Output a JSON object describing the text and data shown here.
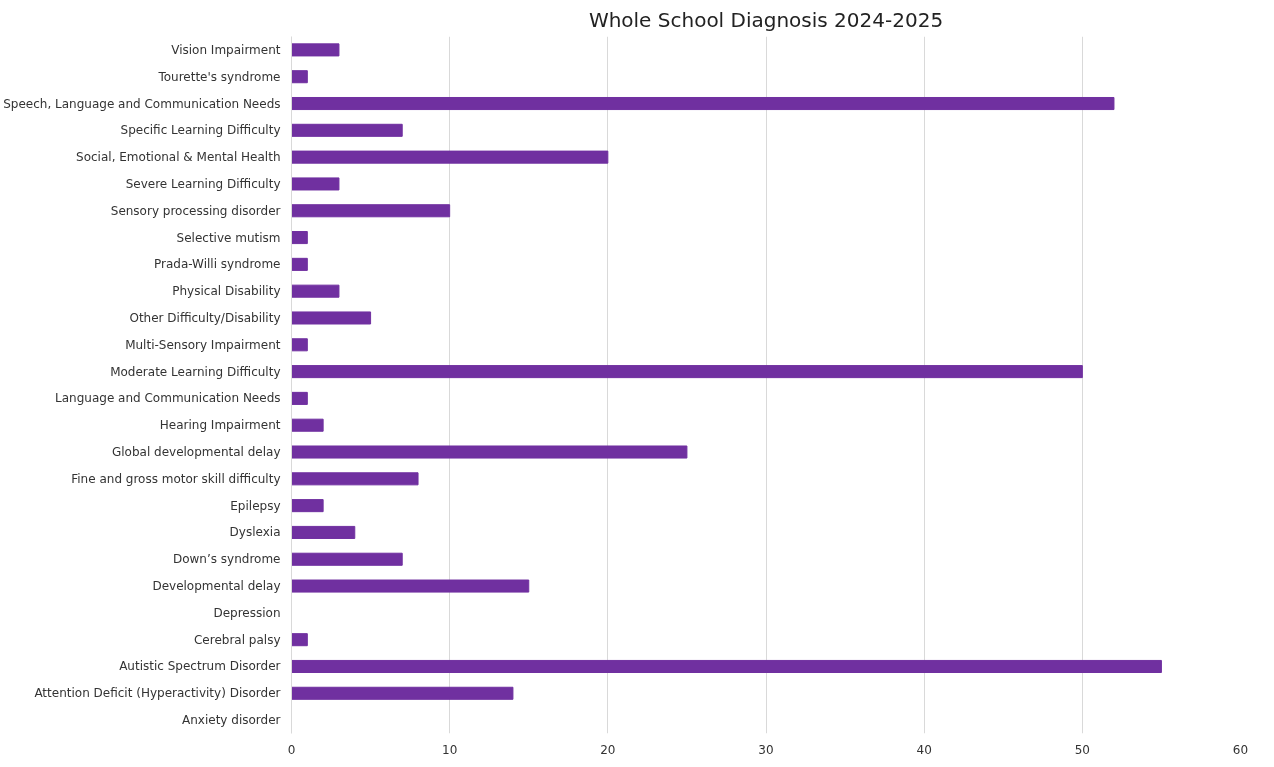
{
  "chart_data": {
    "type": "bar",
    "orientation": "horizontal",
    "title": "Whole School Diagnosis 2024-2025",
    "categories": [
      "Vision Impairment",
      "Tourette's syndrome",
      "Speech, Language and Communication Needs",
      "Specific Learning Difficulty",
      "Social, Emotional & Mental Health",
      "Severe Learning Difficulty",
      "Sensory processing disorder",
      "Selective mutism",
      "Prada-Willi syndrome",
      "Physical Disability",
      "Other Difficulty/Disability",
      "Multi-Sensory Impairment",
      "Moderate Learning Difficulty",
      "Language and Communication Needs",
      "Hearing Impairment",
      "Global developmental delay",
      "Fine and gross motor skill difficulty",
      "Epilepsy",
      "Dyslexia",
      "Down’s syndrome",
      "Developmental delay",
      "Depression",
      "Cerebral palsy",
      "Autistic Spectrum Disorder",
      "Attention Deficit (Hyperactivity) Disorder",
      "Anxiety disorder"
    ],
    "values": [
      3,
      1,
      52,
      7,
      20,
      3,
      10,
      1,
      1,
      3,
      5,
      1,
      50,
      1,
      2,
      25,
      8,
      2,
      4,
      7,
      15,
      0,
      1,
      55,
      14,
      0
    ],
    "color": "#7030a0",
    "xlim": [
      0,
      60
    ],
    "xticks": [
      0,
      10,
      20,
      30,
      40,
      50,
      60
    ],
    "grid": "x"
  }
}
